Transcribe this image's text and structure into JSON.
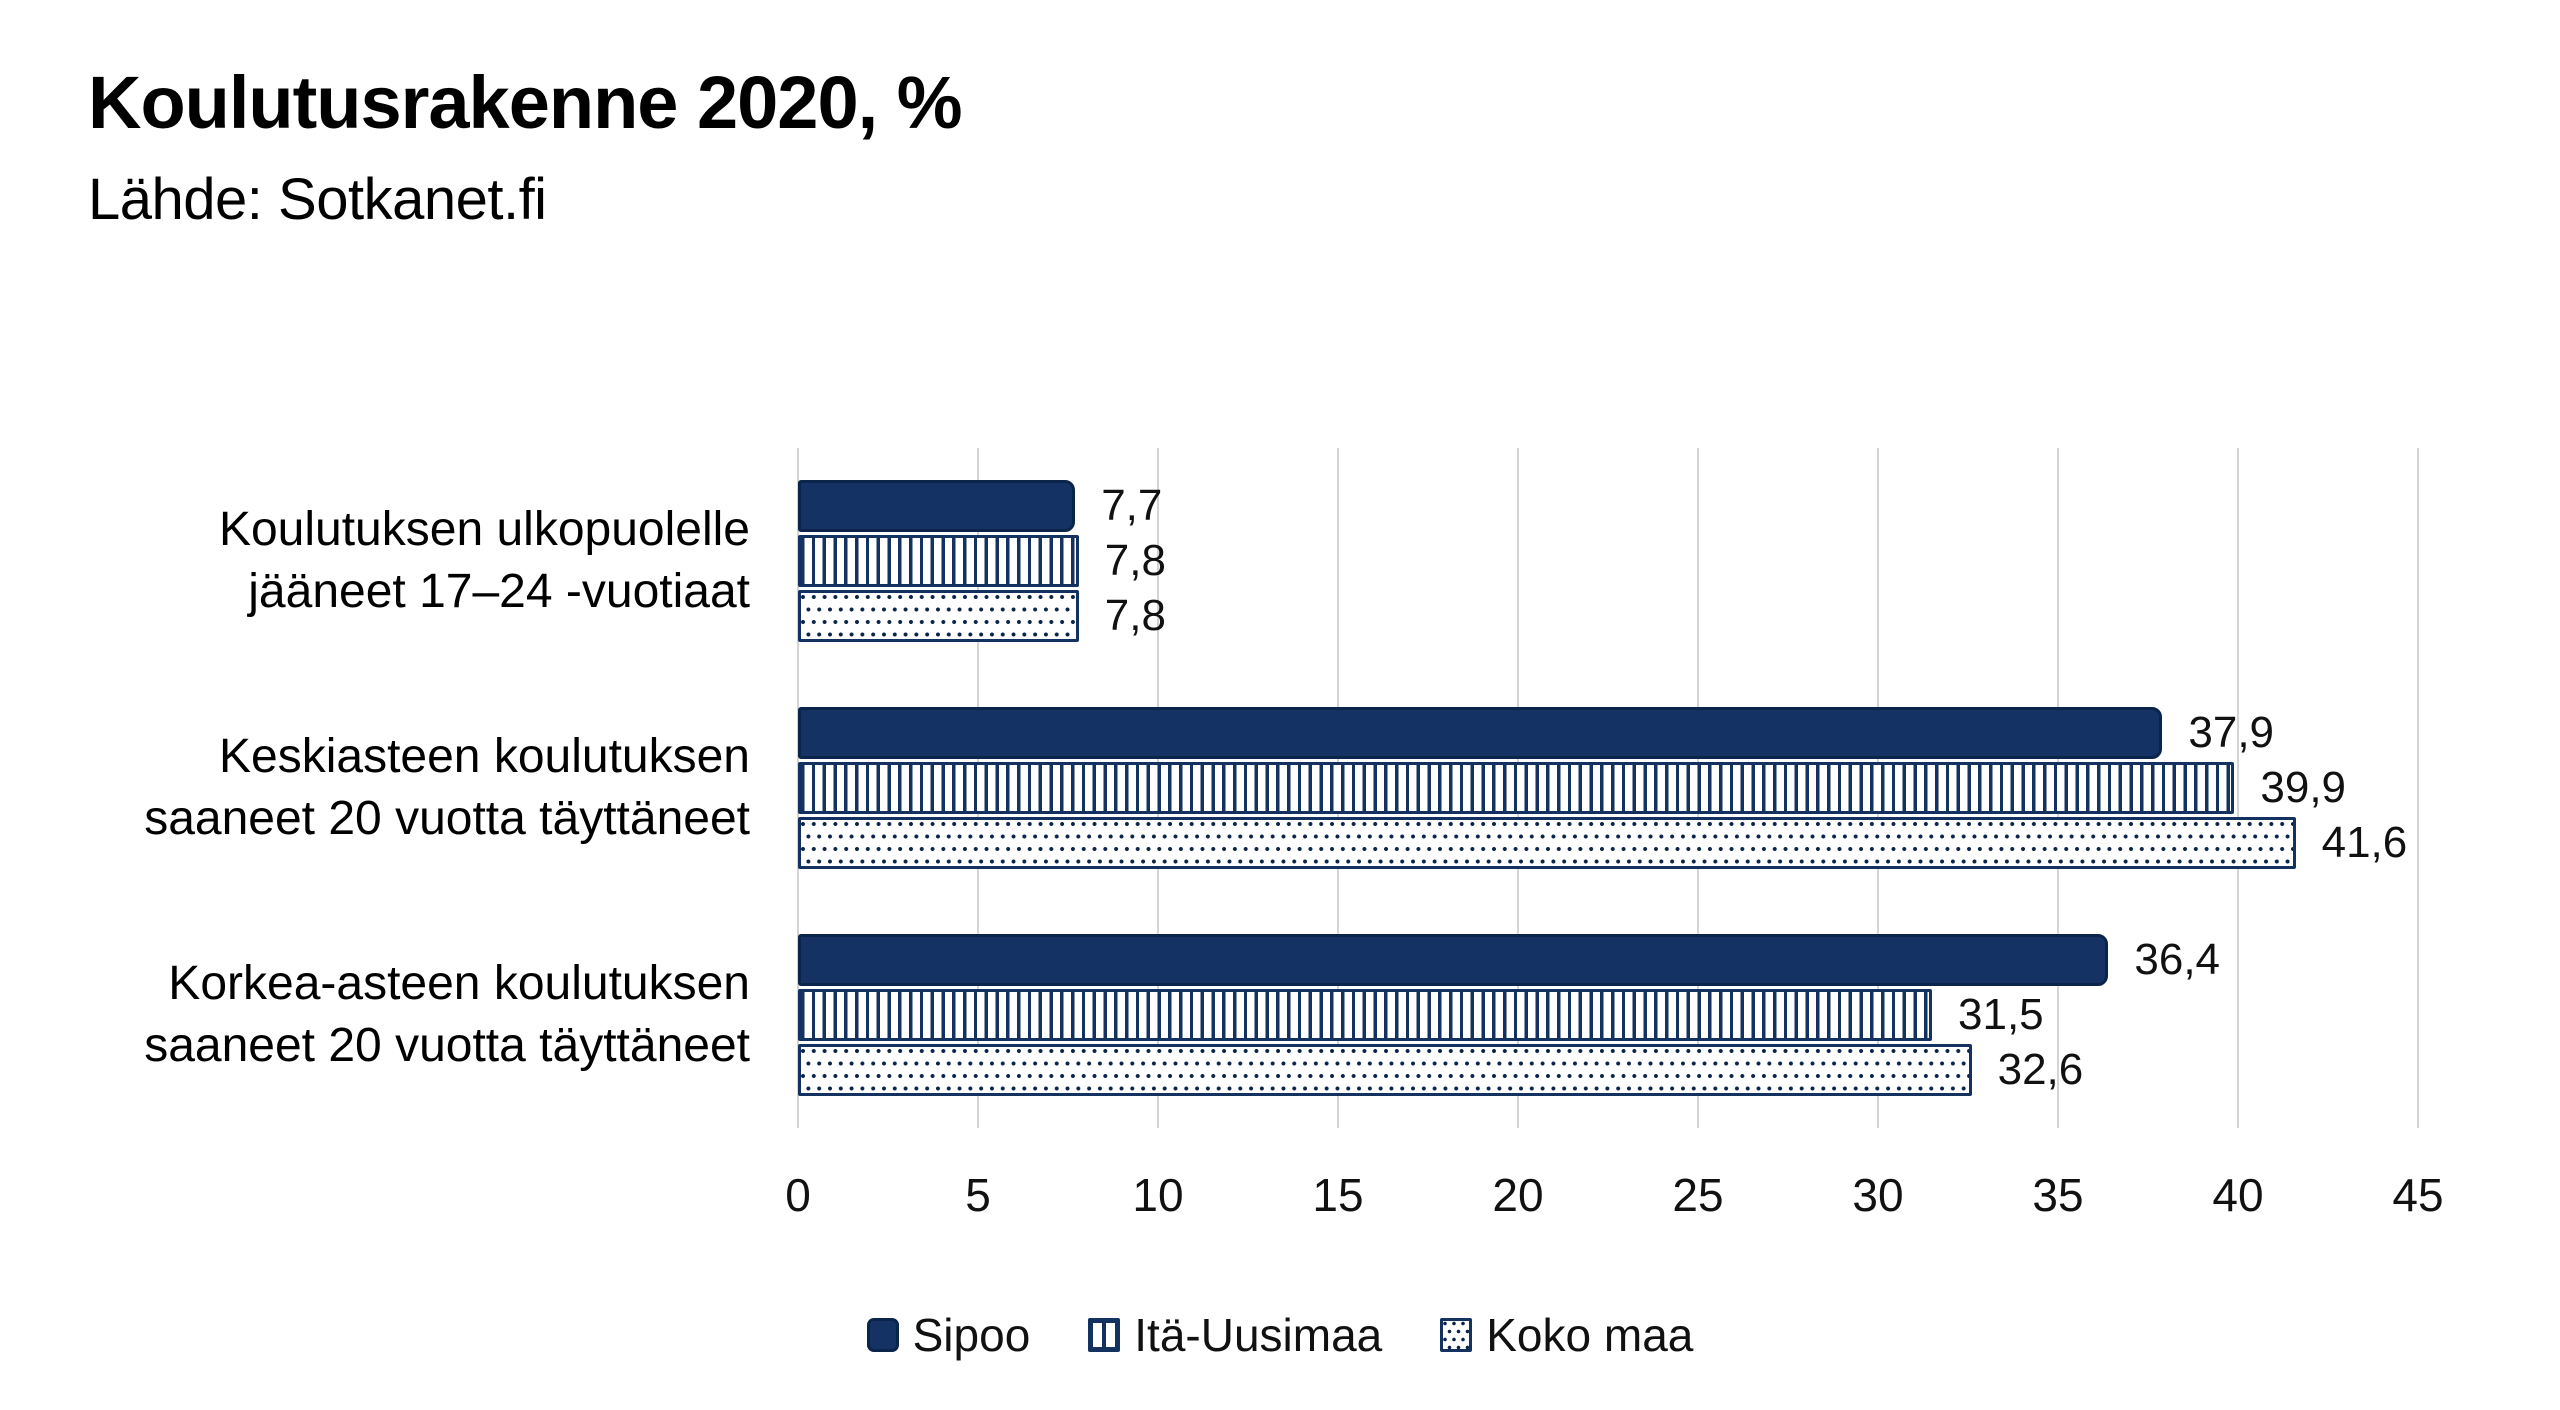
{
  "header": {
    "title": "Koulutusrakenne 2020, %",
    "subtitle": "Lähde: Sotkanet.fi"
  },
  "chart_data": {
    "type": "bar",
    "orientation": "horizontal",
    "title": "Koulutusrakenne 2020, %",
    "subtitle": "Lähde: Sotkanet.fi",
    "unit": "%",
    "categories": [
      "Koulutuksen ulkopuolelle\njääneet 17–24 -vuotiaat",
      "Keskiasteen koulutuksen\nsaaneet 20 vuotta täyttäneet",
      "Korkea-asteen koulutuksen\nsaaneet 20 vuotta täyttäneet"
    ],
    "series": [
      {
        "id": "sipoo",
        "name": "Sipoo",
        "pattern": "solid",
        "values": [
          7.7,
          37.9,
          36.4
        ],
        "labels": [
          "7,7",
          "37,9",
          "36,4"
        ]
      },
      {
        "id": "ita-uusimaa",
        "name": "Itä-Uusimaa",
        "pattern": "vertical-stripes",
        "values": [
          7.8,
          39.9,
          31.5
        ],
        "labels": [
          "7,8",
          "39,9",
          "31,5"
        ]
      },
      {
        "id": "koko-maa",
        "name": "Koko maa",
        "pattern": "dots",
        "values": [
          7.8,
          41.6,
          32.6
        ],
        "labels": [
          "7,8",
          "41,6",
          "32,6"
        ]
      }
    ],
    "xlim": [
      0,
      45
    ],
    "xticks": [
      "0",
      "5",
      "10",
      "15",
      "20",
      "25",
      "30",
      "35",
      "40",
      "45"
    ],
    "grid": "vertical",
    "legend_position": "bottom",
    "colors": {
      "navy": "#14325F",
      "navy_dark": "#0B2449",
      "navy_fill": "#143263",
      "gridline": "#D4D4D4",
      "text": "#111111",
      "background": "#FFFFFF"
    }
  }
}
